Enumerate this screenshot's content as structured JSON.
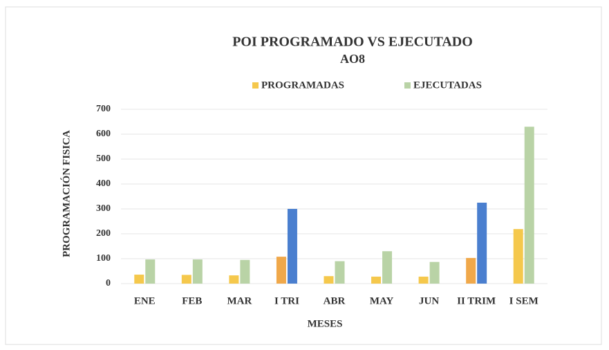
{
  "chart_data": {
    "type": "bar",
    "title": "POI PROGRAMADO VS EJECUTADO",
    "subtitle": "AO8",
    "y_label": "PROGRAMACIÓN FISICA",
    "x_label": "MESES",
    "categories": [
      "ENE",
      "FEB",
      "MAR",
      "I TRI",
      "ABR",
      "MAY",
      "JUN",
      "II TRIM",
      "I SEM"
    ],
    "series": [
      {
        "name": "PROGRAMADAS",
        "color": "#f5c84c",
        "colors": [
          "#f5c84c",
          "#f5c84c",
          "#f5c84c",
          "#f0a84a",
          "#f5c84c",
          "#f5c84c",
          "#f5c84c",
          "#f0a84a",
          "#f5c84c"
        ],
        "values": [
          36,
          35,
          33,
          108,
          30,
          28,
          28,
          103,
          219
        ]
      },
      {
        "name": "EJECUTADAS",
        "color": "#b9d3a6",
        "colors": [
          "#b9d3a6",
          "#b9d3a6",
          "#b9d3a6",
          "#4a7fcf",
          "#b9d3a6",
          "#b9d3a6",
          "#b9d3a6",
          "#4a7fcf",
          "#b9d3a6"
        ],
        "values": [
          97,
          97,
          95,
          300,
          90,
          130,
          87,
          325,
          630
        ]
      }
    ],
    "ylim": [
      0,
      700
    ],
    "yticks": [
      0,
      100,
      200,
      300,
      400,
      500,
      600,
      700
    ],
    "grid": true,
    "legend": "top"
  }
}
